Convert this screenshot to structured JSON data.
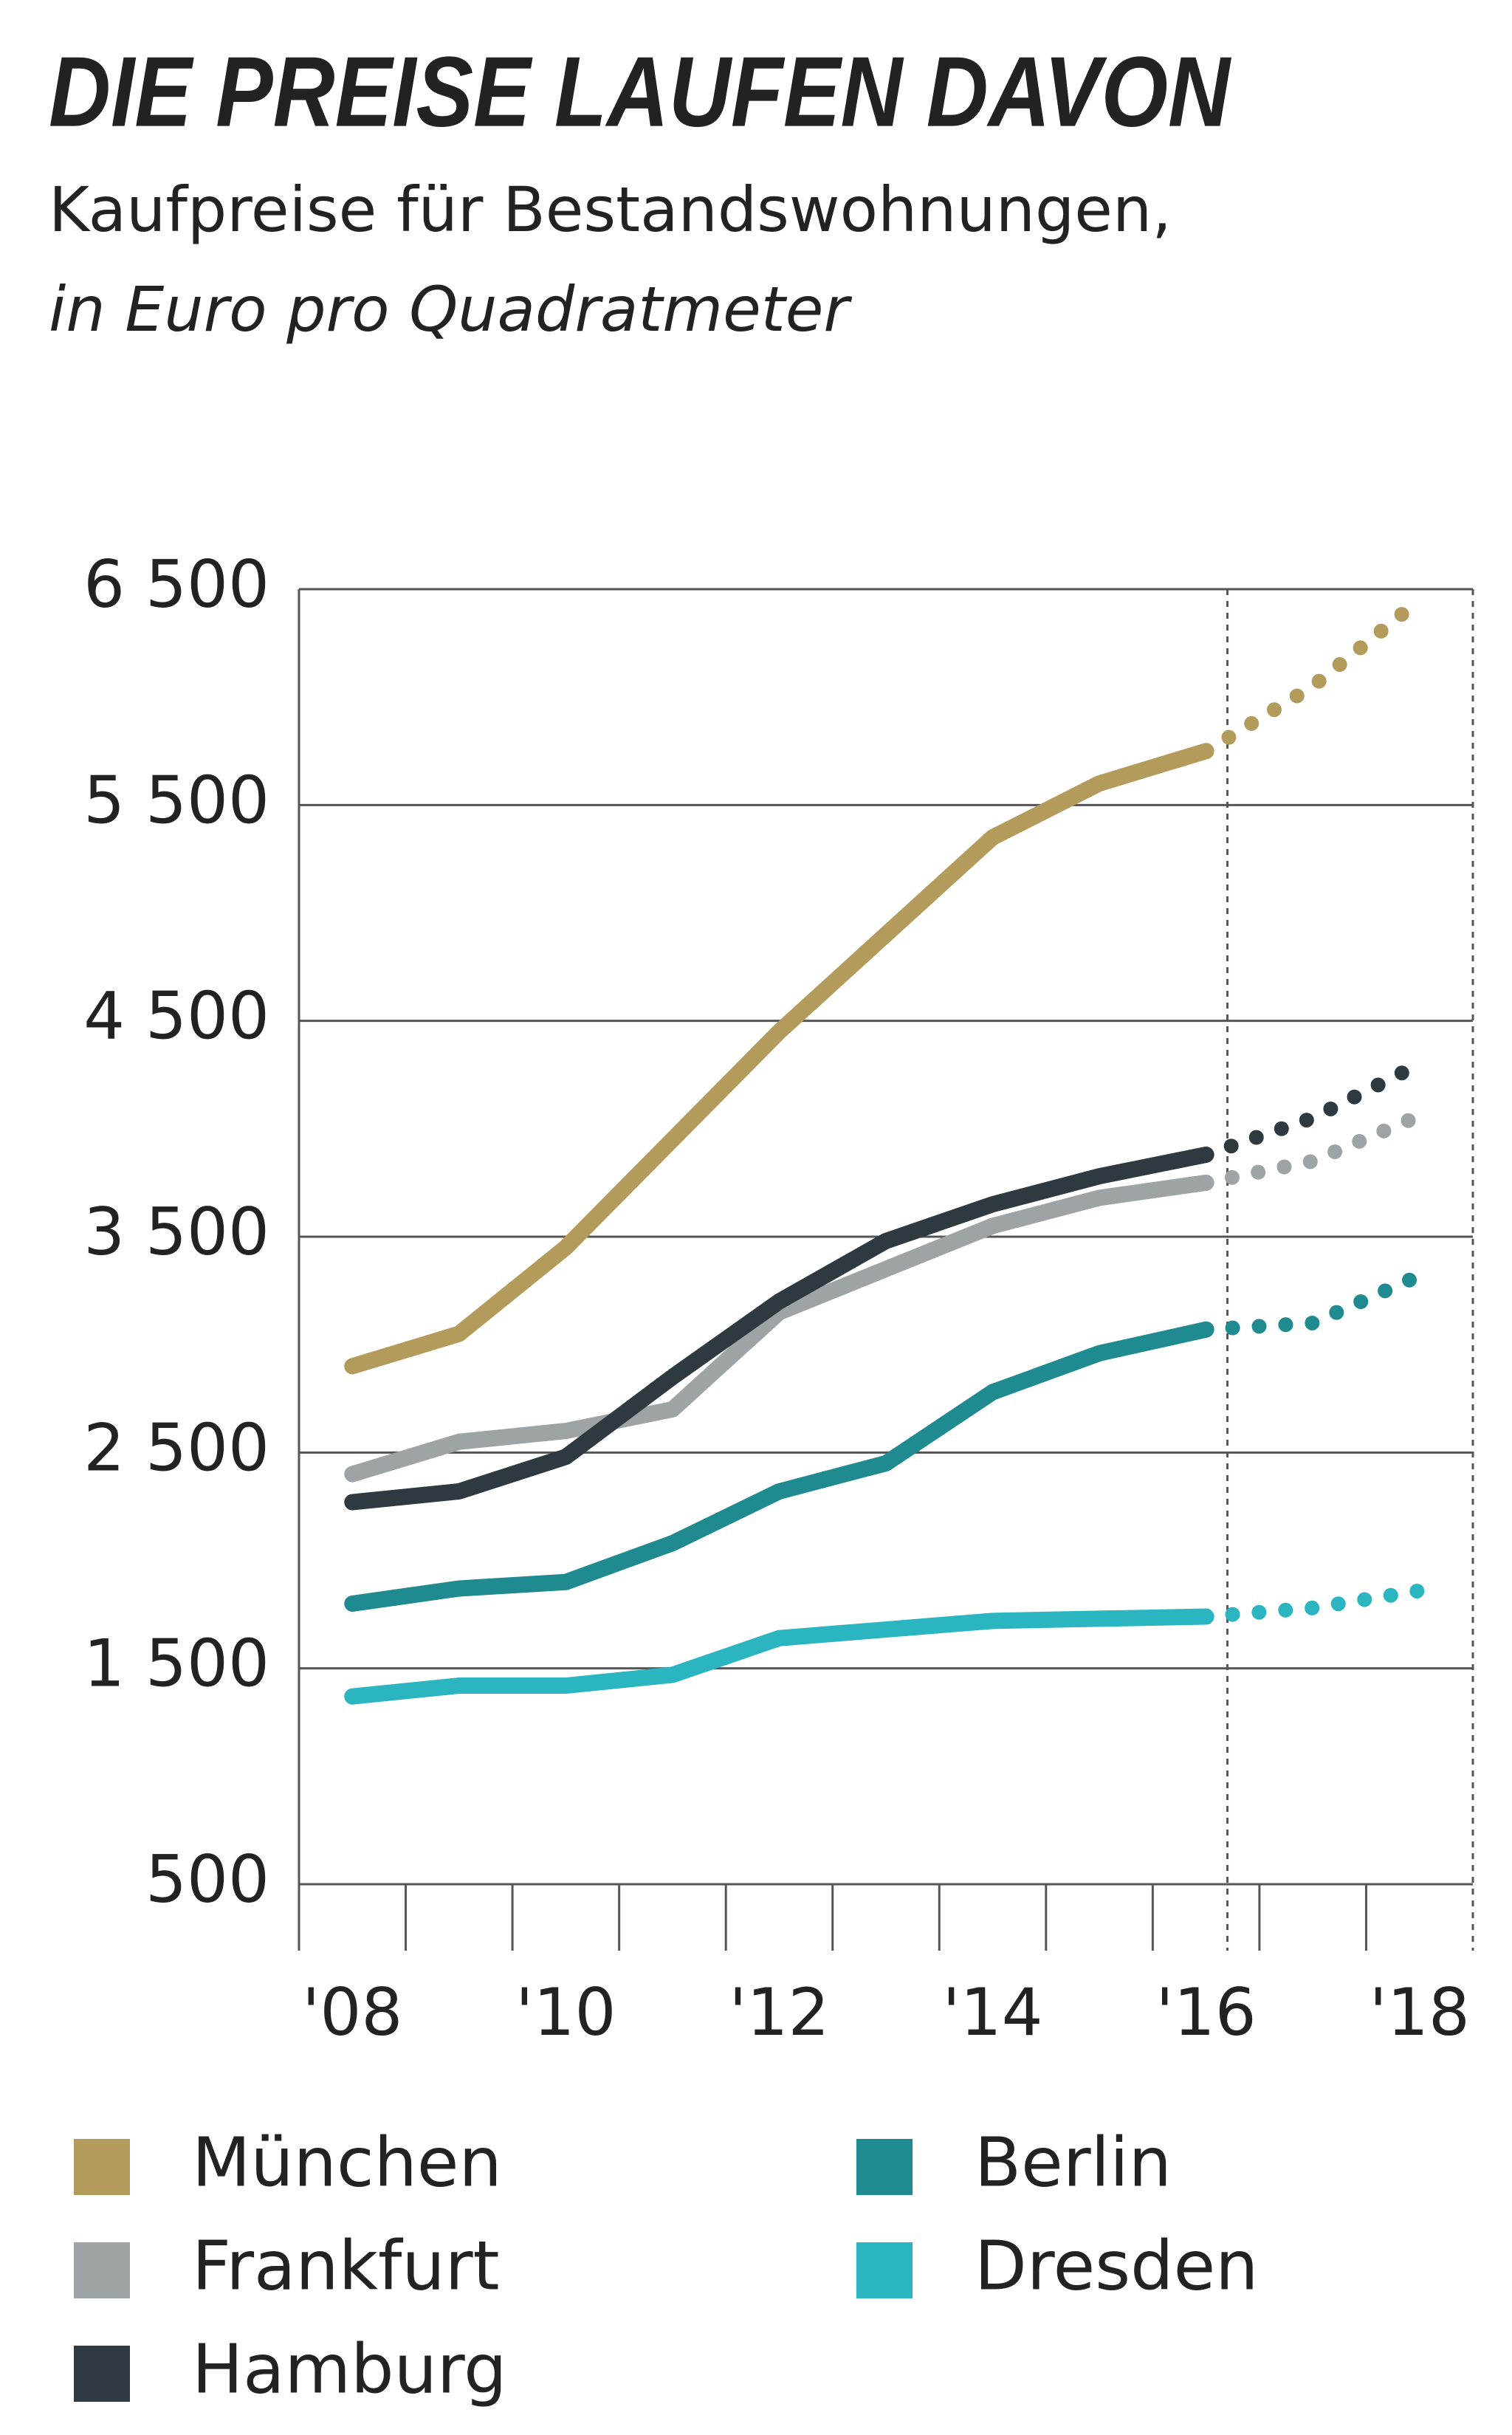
{
  "chart_data": {
    "type": "line",
    "title": "DIE PREISE LAUFEN DAVON",
    "subtitle": "Kaufpreise für Bestandswohnungen,",
    "subtitle2": "in Euro pro Quadratmeter",
    "categories": [
      "'08",
      null,
      "'10",
      null,
      "'12",
      null,
      "'14",
      null,
      "'16",
      null,
      "'18"
    ],
    "forecast_from": 8,
    "series": [
      {
        "name": "München",
        "color": "#b39b5c",
        "values": [
          2900,
          3050,
          3450,
          3950,
          4450,
          4900,
          5350,
          5600,
          5750,
          6050,
          6450
        ]
      },
      {
        "name": "Frankfurt",
        "color": "#9ea3a6",
        "values": [
          2400,
          2550,
          2600,
          2700,
          3150,
          3350,
          3550,
          3680,
          3750,
          3850,
          4060
        ]
      },
      {
        "name": "Hamburg",
        "color": "#2e3a3f",
        "values": [
          2270,
          2320,
          2480,
          2850,
          3200,
          3480,
          3650,
          3780,
          3880,
          4050,
          4300
        ]
      },
      {
        "name": "Berlin",
        "color": "#1f8a8f",
        "values": [
          1800,
          1870,
          1900,
          2080,
          2320,
          2450,
          2780,
          2960,
          3070,
          3100,
          3320
        ]
      },
      {
        "name": "Dresden",
        "color": "#2bb5c0",
        "values": [
          1370,
          1420,
          1420,
          1470,
          1640,
          1680,
          1720,
          1730,
          1740,
          1780,
          1860
        ]
      }
    ],
    "ylim": [
      500,
      6500
    ],
    "yticks": [
      500,
      {
        "value": 1500,
        "label": "1 500"
      },
      {
        "value": 2500,
        "label": "2 500"
      },
      {
        "value": 3500,
        "label": "3 500"
      },
      {
        "value": 4500,
        "label": "4 500"
      },
      {
        "value": 5500,
        "label": "5 500"
      },
      {
        "value": 6500,
        "label": "6 500"
      }
    ],
    "grid": true
  }
}
